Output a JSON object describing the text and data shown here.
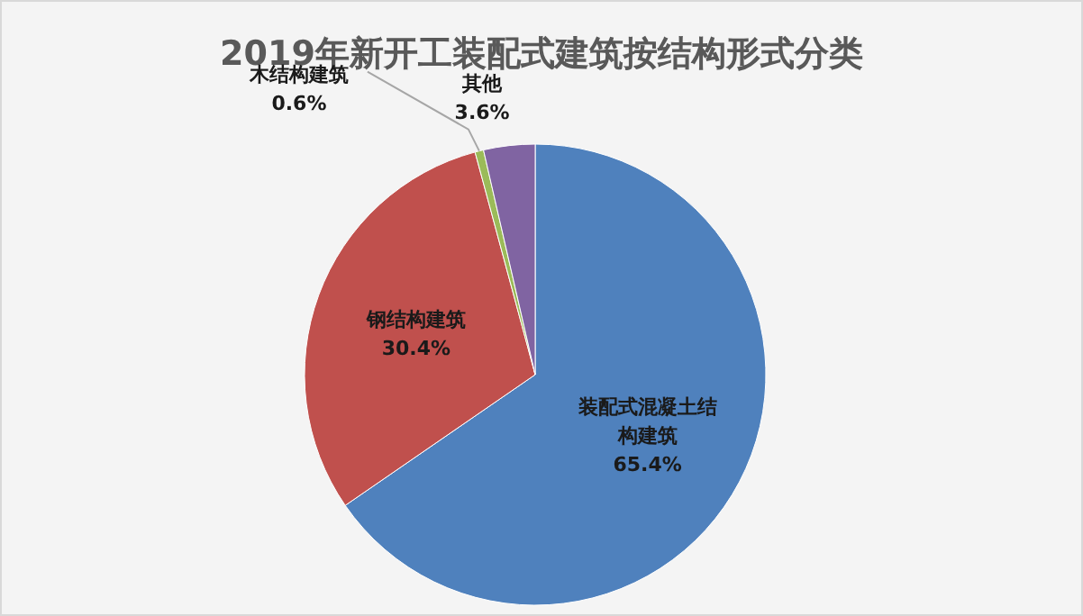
{
  "chart_data": {
    "type": "pie",
    "title": "2019年新开工装配式建筑按结构形式分类",
    "categories": [
      "装配式混凝土结构建筑",
      "钢结构建筑",
      "木结构建筑",
      "其他"
    ],
    "values": [
      65.4,
      30.4,
      0.6,
      3.6
    ],
    "colors": [
      "#4f81bd",
      "#c0504d",
      "#9bbb59",
      "#8064a2"
    ],
    "value_labels": [
      "65.4%",
      "30.4%",
      "0.6%",
      "3.6%"
    ],
    "legend": false
  }
}
